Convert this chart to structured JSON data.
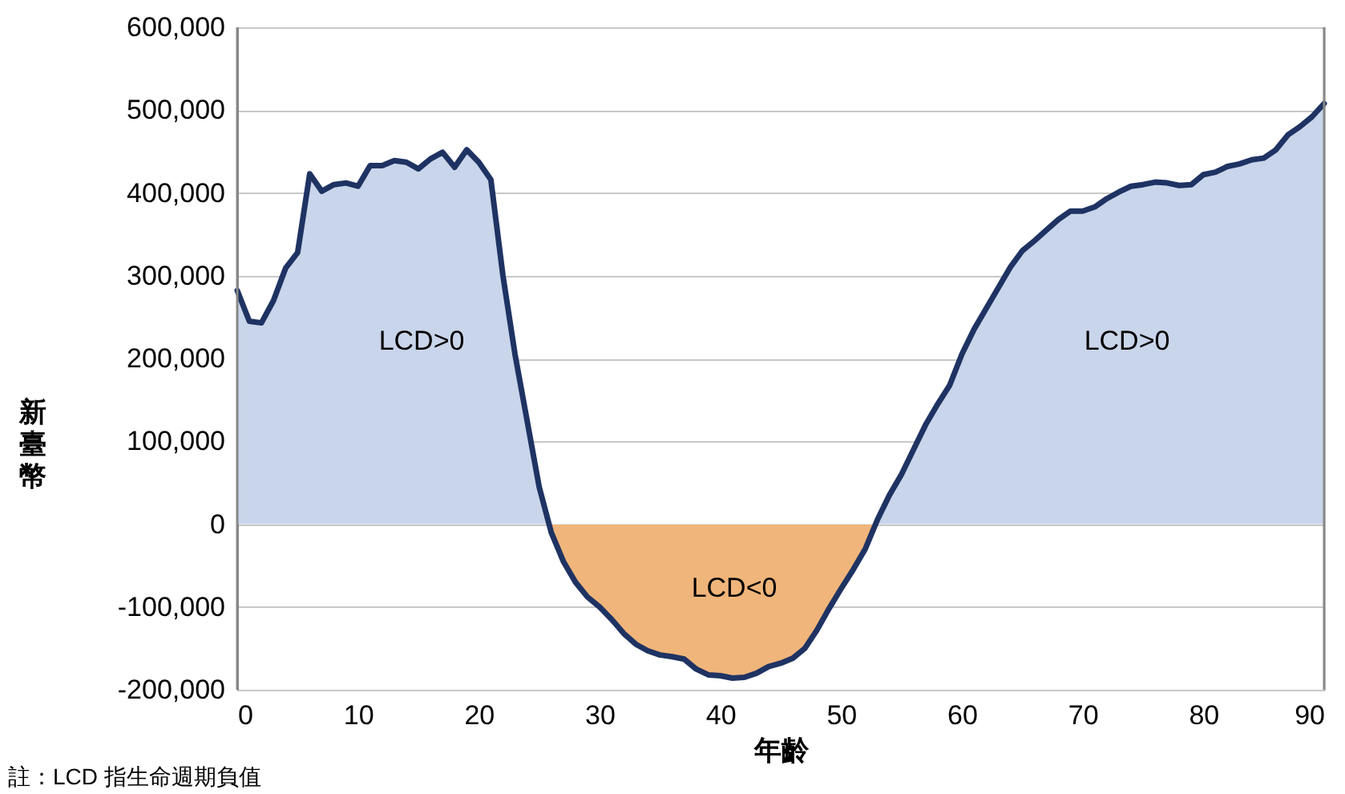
{
  "chart_data": {
    "type": "area",
    "xlabel": "年齡",
    "ylabel": "新臺幣",
    "x": [
      0,
      1,
      2,
      3,
      4,
      5,
      6,
      7,
      8,
      9,
      10,
      11,
      12,
      13,
      14,
      15,
      16,
      17,
      18,
      19,
      20,
      21,
      22,
      23,
      24,
      25,
      26,
      27,
      28,
      29,
      30,
      31,
      32,
      33,
      34,
      35,
      36,
      37,
      38,
      39,
      40,
      41,
      42,
      43,
      44,
      45,
      46,
      47,
      48,
      49,
      50,
      51,
      52,
      53,
      54,
      55,
      56,
      57,
      58,
      59,
      60,
      61,
      62,
      63,
      64,
      65,
      66,
      67,
      68,
      69,
      70,
      71,
      72,
      73,
      74,
      75,
      76,
      77,
      78,
      79,
      80,
      81,
      82,
      83,
      84,
      85,
      86,
      87,
      88,
      89,
      90
    ],
    "series": [
      {
        "color": "#1f3363",
        "colors": [
          "#c9d5ea",
          "#c9d5ea",
          "#c9d5ea",
          "#c9d5ea",
          "#c9d5ea",
          "#c9d5ea",
          "#c9d5ea",
          "#c9d5ea",
          "#c9d5ea",
          "#c9d5ea",
          "#c9d5ea",
          "#c9d5ea",
          "#c9d5ea",
          "#c9d5ea",
          "#c9d5ea",
          "#c9d5ea",
          "#c9d5ea",
          "#c9d5ea",
          "#c9d5ea",
          "#c9d5ea",
          "#c9d5ea",
          "#c9d5ea",
          "#c9d5ea",
          "#c9d5ea",
          "#c9d5ea",
          "#c9d5ea",
          "#f0b57a",
          "#f0b57a",
          "#f0b57a",
          "#f0b57a",
          "#f0b57a",
          "#f0b57a",
          "#f0b57a",
          "#f0b57a",
          "#f0b57a",
          "#f0b57a",
          "#f0b57a",
          "#f0b57a",
          "#f0b57a",
          "#f0b57a",
          "#f0b57a",
          "#f0b57a",
          "#f0b57a",
          "#f0b57a",
          "#f0b57a",
          "#f0b57a",
          "#f0b57a",
          "#f0b57a",
          "#f0b57a",
          "#f0b57a",
          "#f0b57a",
          "#f0b57a",
          "#f0b57a",
          "#c9d5ea",
          "#c9d5ea",
          "#c9d5ea",
          "#c9d5ea",
          "#c9d5ea",
          "#c9d5ea",
          "#c9d5ea",
          "#c9d5ea",
          "#c9d5ea",
          "#c9d5ea",
          "#c9d5ea",
          "#c9d5ea",
          "#c9d5ea",
          "#c9d5ea",
          "#c9d5ea",
          "#c9d5ea",
          "#c9d5ea",
          "#c9d5ea",
          "#c9d5ea",
          "#c9d5ea",
          "#c9d5ea",
          "#c9d5ea",
          "#c9d5ea",
          "#c9d5ea",
          "#c9d5ea",
          "#c9d5ea",
          "#c9d5ea",
          "#c9d5ea",
          "#c9d5ea",
          "#c9d5ea",
          "#c9d5ea",
          "#c9d5ea",
          "#c9d5ea",
          "#c9d5ea",
          "#c9d5ea",
          "#c9d5ea",
          "#c9d5ea",
          "#c9d5ea"
        ],
        "values": [
          282000,
          245000,
          243000,
          270000,
          309000,
          328000,
          423000,
          402000,
          410000,
          412000,
          408000,
          433000,
          433000,
          439000,
          437000,
          429000,
          441000,
          449000,
          431000,
          452000,
          437000,
          416000,
          300000,
          205000,
          125000,
          45000,
          -10000,
          -45000,
          -70000,
          -88000,
          -100000,
          -115000,
          -132000,
          -145000,
          -153000,
          -158000,
          -160000,
          -163000,
          -175000,
          -182000,
          -183000,
          -186000,
          -185000,
          -180000,
          -172000,
          -168000,
          -162000,
          -150000,
          -128000,
          -102000,
          -78000,
          -55000,
          -30000,
          5000,
          35000,
          60000,
          90000,
          120000,
          145000,
          168000,
          205000,
          235000,
          260000,
          285000,
          310000,
          330000,
          342000,
          355000,
          368000,
          378000,
          378000,
          383000,
          393000,
          401000,
          408000,
          410000,
          413000,
          412000,
          409000,
          410000,
          422000,
          425000,
          432000,
          435000,
          440000,
          442000,
          452000,
          470000,
          480000,
          492000,
          508000
        ]
      }
    ],
    "xlim": [
      0,
      90
    ],
    "xticks": [
      0,
      10,
      20,
      30,
      40,
      50,
      60,
      70,
      80,
      90
    ],
    "ylim": [
      -200000,
      600000
    ],
    "yticks": [
      {
        "value": -200000,
        "label": "-200,000"
      },
      {
        "value": -100000,
        "label": "-100,000"
      },
      0,
      {
        "value": 100000,
        "label": "100,000"
      },
      {
        "value": 200000,
        "label": "200,000"
      },
      {
        "value": 300000,
        "label": "300,000"
      },
      {
        "value": 400000,
        "label": "400,000"
      },
      {
        "value": 500000,
        "label": "500,000"
      },
      {
        "value": 600000,
        "label": "600,000"
      }
    ],
    "grid": "y",
    "annotations": [
      "LCD>0",
      "LCD>0",
      "LCD<0",
      "註：LCD 指生命週期負值"
    ]
  }
}
